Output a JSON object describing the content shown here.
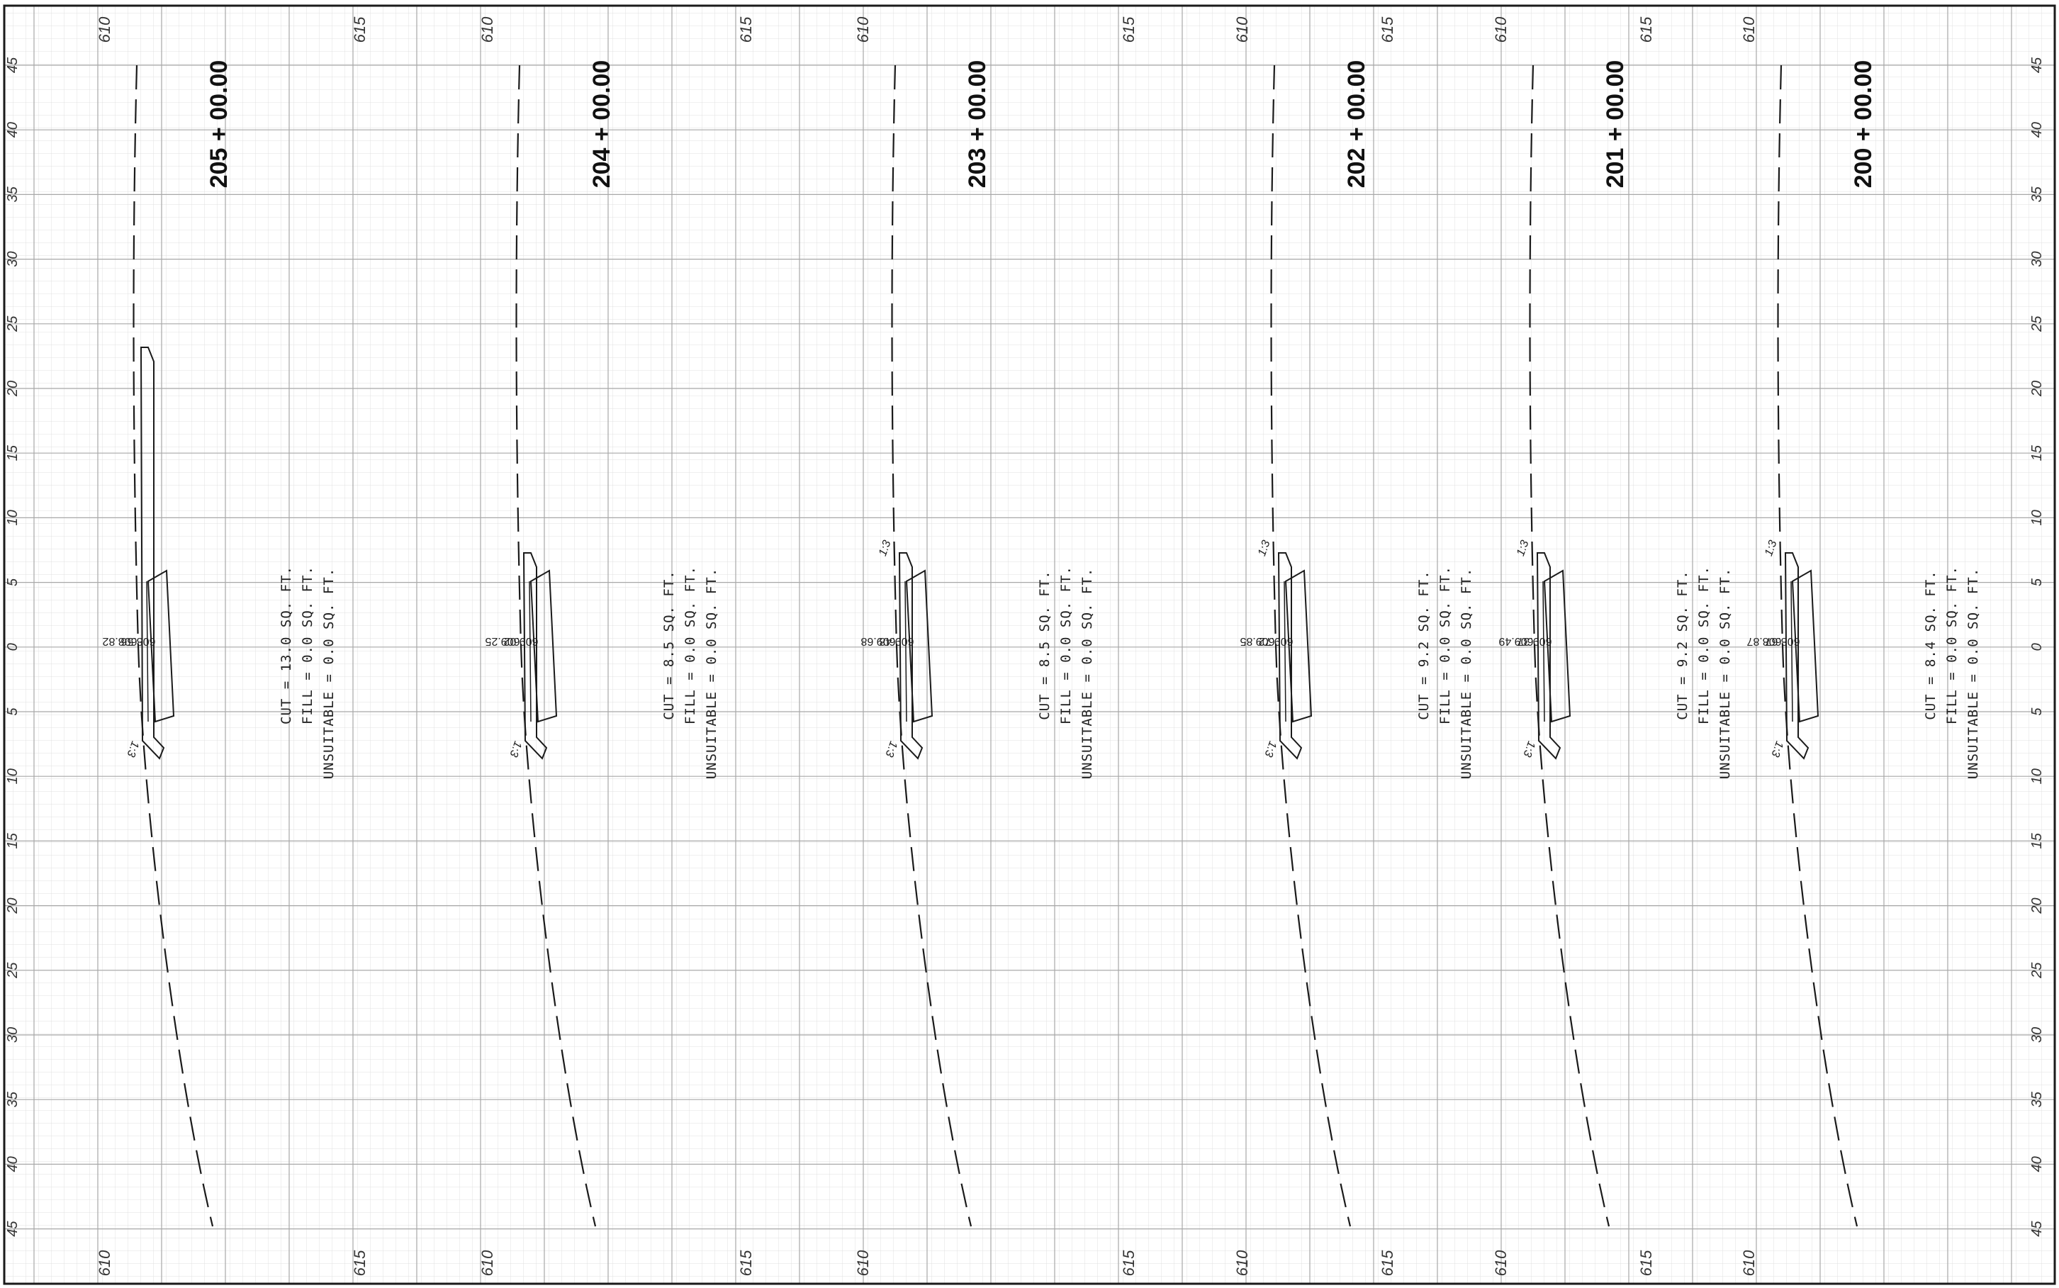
{
  "sheet": {
    "offset_labels": [
      "45",
      "40",
      "35",
      "30",
      "25",
      "20",
      "15",
      "10",
      "5",
      "0",
      "5",
      "10",
      "15",
      "20",
      "25",
      "30",
      "35",
      "40",
      "45"
    ],
    "colors": {
      "paper": "#ffffff",
      "grid_minor": "#dcdcdc",
      "grid_major": "#9a9a9a",
      "ink": "#1a1a1a"
    }
  },
  "sections": [
    {
      "station": "205 + 00.00",
      "elev_labels": {
        "low": "610",
        "high": "615"
      },
      "point_labels": [
        "608.56",
        "608.82"
      ],
      "slope_labels": [
        "1:3"
      ],
      "quantities": {
        "cut": "CUT = 13.0 SQ. FT.",
        "fill": "FILL = 0.0 SQ. FT.",
        "unsuitable": "UNSUITABLE = 0.0 SQ. FT."
      }
    },
    {
      "station": "204 + 00.00",
      "elev_labels": {
        "low": "610",
        "high": "615"
      },
      "point_labels": [
        "609.02",
        "609.25"
      ],
      "slope_labels": [
        "1:3"
      ],
      "quantities": {
        "cut": "CUT = 8.5 SQ. FT.",
        "fill": "FILL = 0.0 SQ. FT.",
        "unsuitable": "UNSUITABLE = 0.0 SQ. FT."
      }
    },
    {
      "station": "203 + 00.00",
      "elev_labels": {
        "low": "610",
        "high": "615"
      },
      "point_labels": [
        "609.48",
        "609.68"
      ],
      "slope_labels": [
        "1:3",
        "1:3"
      ],
      "quantities": {
        "cut": "CUT = 8.5 SQ. FT.",
        "fill": "FILL = 0.0 SQ. FT.",
        "unsuitable": "UNSUITABLE = 0.0 SQ. FT."
      }
    },
    {
      "station": "202 + 00.00",
      "elev_labels": {
        "low": "610",
        "high": "615"
      },
      "point_labels": [
        "609.72",
        "609.85"
      ],
      "slope_labels": [
        "1:3",
        "1:3"
      ],
      "quantities": {
        "cut": "CUT = 9.2 SQ. FT.",
        "fill": "FILL = 0.0 SQ. FT.",
        "unsuitable": "UNSUITABLE = 0.0 SQ. FT."
      }
    },
    {
      "station": "201 + 00.00",
      "elev_labels": {
        "low": "610",
        "high": "615"
      },
      "point_labels": [
        "609.37",
        "609.49"
      ],
      "slope_labels": [
        "1:3",
        "1:3"
      ],
      "quantities": {
        "cut": "CUT = 9.2 SQ. FT.",
        "fill": "FILL = 0.0 SQ. FT.",
        "unsuitable": "UNSUITABLE = 0.0 SQ. FT."
      }
    },
    {
      "station": "200 + 00.00",
      "elev_labels": {
        "low": "610",
        "high": ""
      },
      "point_labels": [
        "608.67",
        "608.87"
      ],
      "slope_labels": [
        "1:3",
        "1:3"
      ],
      "quantities": {
        "cut": "CUT = 8.4 SQ. FT.",
        "fill": "FILL = 0.0 SQ. FT.",
        "unsuitable": "UNSUITABLE = 0.0 SQ. FT."
      }
    }
  ]
}
